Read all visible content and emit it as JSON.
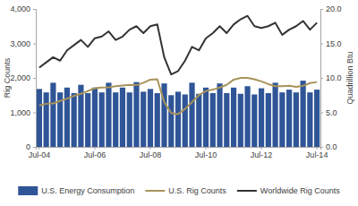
{
  "chart_data": {
    "type": "bar",
    "y_label": "Rig Counts",
    "y2_label": "Quadrillion Btu",
    "categories": [
      "Jul-04",
      null,
      null,
      null,
      null,
      null,
      null,
      null,
      "Jul-06",
      null,
      null,
      null,
      null,
      null,
      null,
      null,
      "Jul-08",
      null,
      null,
      null,
      null,
      null,
      null,
      null,
      "Jul-10",
      null,
      null,
      null,
      null,
      null,
      null,
      null,
      "Jul-12",
      null,
      null,
      null,
      null,
      null,
      null,
      null,
      "Jul-14"
    ],
    "series": [
      {
        "name": "U.S. Energy Consumption",
        "type": "bar",
        "axis": "y2",
        "color": "#2f5597",
        "values": [
          8.4,
          7.9,
          9.3,
          7.9,
          8.6,
          7.8,
          9.0,
          7.8,
          8.6,
          7.9,
          9.3,
          7.9,
          8.6,
          7.9,
          9.4,
          8.0,
          8.4,
          7.8,
          9.2,
          7.5,
          8.0,
          7.6,
          9.3,
          7.7,
          8.6,
          7.8,
          9.2,
          7.8,
          8.6,
          7.7,
          8.8,
          7.6,
          8.5,
          7.8,
          9.3,
          7.9,
          8.3,
          7.9,
          9.6,
          7.9,
          8.3
        ]
      },
      {
        "name": "U.S. Rig Counts",
        "type": "line",
        "color": "#a8935a",
        "values": [
          1200,
          1250,
          1260,
          1330,
          1400,
          1480,
          1540,
          1620,
          1700,
          1720,
          1730,
          1760,
          1780,
          1800,
          1790,
          1860,
          1950,
          1960,
          1300,
          980,
          950,
          1100,
          1300,
          1500,
          1620,
          1660,
          1720,
          1800,
          1950,
          2000,
          2000,
          1960,
          1900,
          1820,
          1760,
          1760,
          1770,
          1740,
          1770,
          1850,
          1880
        ]
      },
      {
        "name": "Worldwide Rig Counts",
        "type": "line",
        "color": "#333333",
        "values": [
          2300,
          2450,
          2600,
          2500,
          2800,
          2950,
          3100,
          2900,
          3150,
          3200,
          3350,
          3100,
          3200,
          3400,
          3500,
          3300,
          3500,
          3550,
          2600,
          2100,
          2200,
          2500,
          2900,
          2800,
          3150,
          3300,
          3500,
          3300,
          3550,
          3700,
          3800,
          3500,
          3450,
          3500,
          3600,
          3250,
          3400,
          3500,
          3650,
          3400,
          3600
        ]
      }
    ],
    "ylim": [
      0,
      4000
    ],
    "yticks": [
      0,
      {
        "value": 1000,
        "label": "1,000"
      },
      {
        "value": 2000,
        "label": "2,000"
      },
      {
        "value": 3000,
        "label": "3,000"
      },
      {
        "value": 4000,
        "label": "4,000"
      }
    ],
    "y2lim": [
      0,
      20
    ],
    "y2ticks": [
      {
        "value": 0,
        "label": "0.0"
      },
      {
        "value": 5,
        "label": "5.0"
      },
      {
        "value": 10,
        "label": "10.0"
      },
      {
        "value": 15,
        "label": "15.0"
      },
      {
        "value": 20,
        "label": "20.0"
      }
    ],
    "grid": false,
    "legend": "bottom"
  }
}
